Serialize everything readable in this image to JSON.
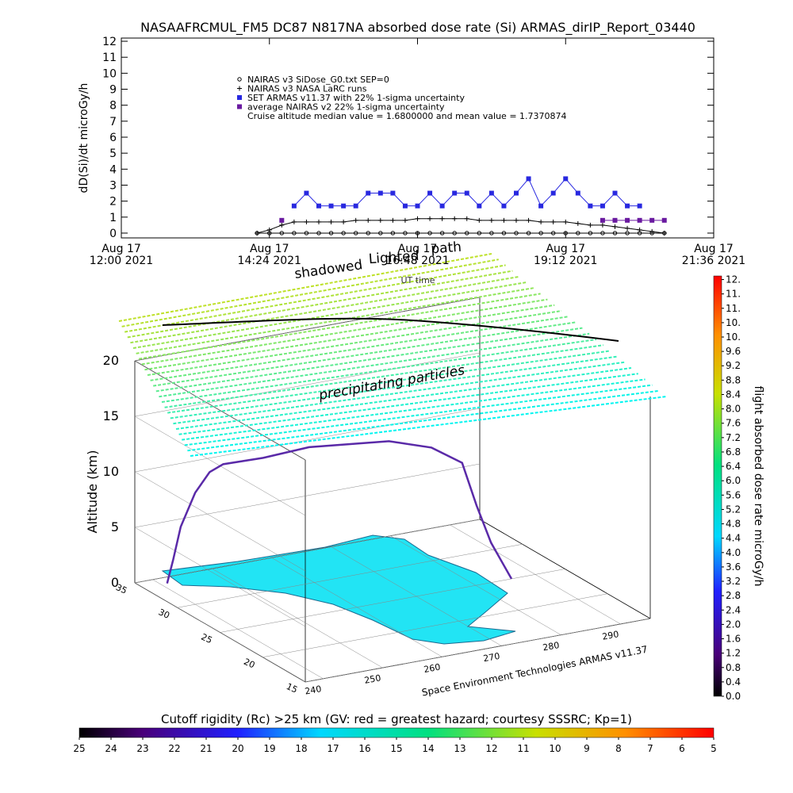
{
  "chart_data": [
    {
      "type": "line",
      "title": "NASAAFRCMUL_FM5 DC87 N817NA absorbed dose rate (Si) ARMAS_dirIP_Report_03440",
      "y_label": "dD(Si)/dt microGy/h",
      "x_label": "UT time",
      "annotation": "Cruise altitude median value = 1.6800000 and mean value = 1.7370874",
      "xlim": [
        12,
        21.6
      ],
      "xticks": [
        {
          "value": 12,
          "label": "Aug 17 12:00 2021"
        },
        {
          "value": 14.4,
          "label": "Aug 17 14:24 2021"
        },
        {
          "value": 16.8,
          "label": "Aug 17 16:48 2021"
        },
        {
          "value": 19.2,
          "label": "Aug 17 19:12 2021"
        },
        {
          "value": 21.6,
          "label": "Aug 17 21:36 2021"
        }
      ],
      "ylim": [
        -0.3,
        12.2
      ],
      "yticks": [
        0,
        1,
        2,
        3,
        4,
        5,
        6,
        7,
        8,
        9,
        10,
        11,
        12
      ],
      "x": [
        14.2,
        14.4,
        14.6,
        14.8,
        15.0,
        15.2,
        15.4,
        15.6,
        15.8,
        16.0,
        16.2,
        16.4,
        16.6,
        16.8,
        17.0,
        17.2,
        17.4,
        17.6,
        17.8,
        18.0,
        18.2,
        18.4,
        18.6,
        18.8,
        19.0,
        19.2,
        19.4,
        19.6,
        19.8,
        20.0,
        20.2,
        20.4,
        20.6,
        20.8
      ],
      "series": [
        {
          "name": "NAIRAS v3 SiDose_G0.txt SEP=0",
          "color": "#000000",
          "marker": "circle",
          "values": [
            0,
            0,
            0,
            0,
            0,
            0,
            0,
            0,
            0,
            0,
            0,
            0,
            0,
            0,
            0,
            0,
            0,
            0,
            0,
            0,
            0,
            0,
            0,
            0,
            0,
            0,
            0,
            0,
            0,
            0,
            0,
            0,
            0,
            0
          ]
        },
        {
          "name": "NAIRAS v3 NASA LaRC runs",
          "color": "#000000",
          "marker": "plus",
          "values": [
            0.0,
            0.2,
            0.5,
            0.7,
            0.7,
            0.7,
            0.7,
            0.7,
            0.8,
            0.8,
            0.8,
            0.8,
            0.8,
            0.9,
            0.9,
            0.9,
            0.9,
            0.9,
            0.8,
            0.8,
            0.8,
            0.8,
            0.8,
            0.7,
            0.7,
            0.7,
            0.6,
            0.5,
            0.5,
            0.4,
            0.3,
            0.2,
            0.1,
            0.0
          ]
        },
        {
          "name": "SET ARMAS v11.37 with 22% 1-sigma uncertainty",
          "color": "#2828e0",
          "marker": "square",
          "values": [
            null,
            null,
            null,
            1.7,
            2.5,
            1.7,
            1.7,
            1.7,
            1.7,
            2.5,
            2.5,
            2.5,
            1.7,
            1.7,
            2.5,
            1.7,
            2.5,
            2.5,
            1.7,
            2.5,
            1.7,
            2.5,
            3.4,
            1.7,
            2.5,
            3.4,
            2.5,
            1.7,
            1.7,
            2.5,
            1.7,
            1.7,
            null,
            null
          ]
        },
        {
          "name": "average NAIRAS v2 22% 1-sigma uncertainty",
          "color": "#6a1aa0",
          "marker": "square",
          "values": [
            null,
            null,
            0.8,
            null,
            null,
            null,
            null,
            null,
            null,
            null,
            null,
            null,
            null,
            null,
            null,
            null,
            null,
            null,
            null,
            null,
            null,
            null,
            null,
            null,
            null,
            null,
            null,
            null,
            0.8,
            0.8,
            0.8,
            0.8,
            0.8,
            0.8
          ]
        }
      ]
    },
    {
      "type": "surface3d",
      "z_label": "Altitude (km)",
      "annotations": [
        "shadowed",
        "Lighted",
        "path",
        "precipitating particles"
      ],
      "credit": "Space Environment Technologies ARMAS v11.37",
      "xlim": [
        237,
        295
      ],
      "xticks": [
        240,
        250,
        260,
        270,
        280,
        290
      ],
      "ylim": [
        15,
        35
      ],
      "yticks": [
        35,
        30,
        25,
        20,
        15
      ],
      "zlim": [
        0,
        20
      ],
      "zticks": [
        0,
        5,
        10,
        15,
        20
      ],
      "path": {
        "lon": [
          241,
          242,
          243,
          245,
          247,
          249,
          255,
          262,
          268,
          274,
          279,
          282,
          283,
          284,
          286
        ],
        "lat": [
          34,
          34,
          33.8,
          33.5,
          33.2,
          33,
          32.5,
          32,
          31.5,
          31,
          29.5,
          28,
          27,
          26,
          25
        ],
        "alt": [
          0,
          2,
          5,
          8,
          9.8,
          10.4,
          10.6,
          11.1,
          11.0,
          10.9,
          10.5,
          9.5,
          6,
          3,
          0
        ]
      }
    },
    {
      "type": "colorbar",
      "title": "flight absorbed dose rate microGy/h",
      "ylim": [
        0,
        11.7
      ],
      "yticks": [
        {
          "value": 0,
          "label": "0.0"
        },
        {
          "value": 0.4,
          "label": "0.4"
        },
        {
          "value": 0.8,
          "label": "0.8"
        },
        {
          "value": 1.2,
          "label": "1.2"
        },
        {
          "value": 1.6,
          "label": "1.6"
        },
        {
          "value": 2,
          "label": "2.0"
        },
        {
          "value": 2.4,
          "label": "2.4"
        },
        {
          "value": 2.8,
          "label": "2.8"
        },
        {
          "value": 3.2,
          "label": "3.2"
        },
        {
          "value": 3.6,
          "label": "3.6"
        },
        {
          "value": 4,
          "label": "4.0"
        },
        {
          "value": 4.4,
          "label": "4.4"
        },
        {
          "value": 4.8,
          "label": "4.8"
        },
        {
          "value": 5.2,
          "label": "5.2"
        },
        {
          "value": 5.6,
          "label": "5.6"
        },
        {
          "value": 6,
          "label": "6.0"
        },
        {
          "value": 6.4,
          "label": "6.4"
        },
        {
          "value": 6.8,
          "label": "6.8"
        },
        {
          "value": 7.2,
          "label": "7.2"
        },
        {
          "value": 7.6,
          "label": "7.6"
        },
        {
          "value": 8,
          "label": "8.0"
        },
        {
          "value": 8.4,
          "label": "8.4"
        },
        {
          "value": 8.8,
          "label": "8.8"
        },
        {
          "value": 9.2,
          "label": "9.2"
        },
        {
          "value": 9.6,
          "label": "9.6"
        },
        {
          "value": 10,
          "label": "10."
        },
        {
          "value": 10.4,
          "label": "10."
        },
        {
          "value": 10.8,
          "label": "11."
        },
        {
          "value": 11.2,
          "label": "11."
        },
        {
          "value": 11.6,
          "label": "12."
        }
      ]
    },
    {
      "type": "colorbar",
      "title": "Cutoff rigidity (Rc) >25 km (GV: red = greatest hazard; courtesy SSSRC; Kp=1)",
      "xlim": [
        25,
        5
      ],
      "xticks": [
        25,
        24,
        23,
        22,
        21,
        20,
        19,
        18,
        17,
        16,
        15,
        14,
        13,
        12,
        11,
        10,
        9,
        8,
        7,
        6,
        5
      ]
    }
  ]
}
